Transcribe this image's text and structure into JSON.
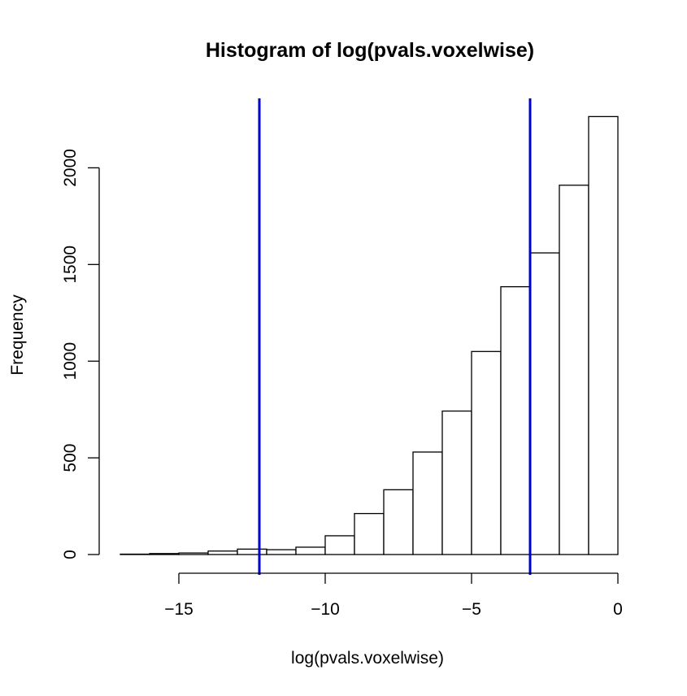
{
  "chart_data": {
    "type": "bar",
    "title": "Histogram of log(pvals.voxelwise)",
    "xlabel": "log(pvals.voxelwise)",
    "ylabel": "Frequency",
    "xlim": [
      -17,
      0
    ],
    "ylim": [
      0,
      2260
    ],
    "x_ticks": [
      -15,
      -10,
      -5,
      0
    ],
    "x_tick_labels": [
      "−15",
      "−10",
      "−5",
      "0"
    ],
    "y_ticks": [
      0,
      500,
      1000,
      1500,
      2000
    ],
    "y_tick_labels": [
      "0",
      "500",
      "1000",
      "1500",
      "2000"
    ],
    "bins": [
      {
        "from": -17,
        "to": -16,
        "value": 2
      },
      {
        "from": -16,
        "to": -15,
        "value": 5
      },
      {
        "from": -15,
        "to": -14,
        "value": 8
      },
      {
        "from": -14,
        "to": -13,
        "value": 18
      },
      {
        "from": -13,
        "to": -12,
        "value": 28
      },
      {
        "from": -12,
        "to": -11,
        "value": 25
      },
      {
        "from": -11,
        "to": -10,
        "value": 38
      },
      {
        "from": -10,
        "to": -9,
        "value": 97
      },
      {
        "from": -9,
        "to": -8,
        "value": 212
      },
      {
        "from": -8,
        "to": -7,
        "value": 335
      },
      {
        "from": -7,
        "to": -6,
        "value": 530
      },
      {
        "from": -6,
        "to": -5,
        "value": 742
      },
      {
        "from": -5,
        "to": -4,
        "value": 1050
      },
      {
        "from": -4,
        "to": -3,
        "value": 1385
      },
      {
        "from": -3,
        "to": -2,
        "value": 1560
      },
      {
        "from": -2,
        "to": -1,
        "value": 1910
      },
      {
        "from": -1,
        "to": 0,
        "value": 2265
      }
    ],
    "vlines": [
      {
        "x": -12.25,
        "color": "#0000cc"
      },
      {
        "x": -3.0,
        "color": "#0000cc"
      }
    ],
    "bar_fill": "#ffffff",
    "bar_stroke": "#000000",
    "grid": false,
    "legend": "none"
  }
}
